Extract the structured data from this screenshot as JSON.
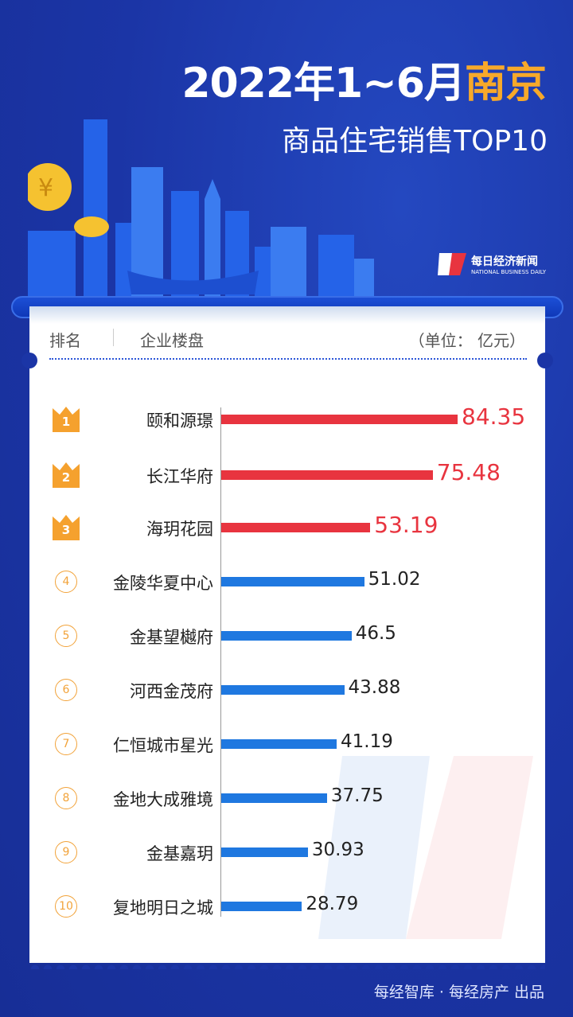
{
  "header": {
    "title_prefix": "2022年1~6月",
    "title_city": "南京",
    "subtitle": "商品住宅销售TOP10"
  },
  "logo": {
    "name_cn": "每日经济新闻",
    "name_en": "NATIONAL BUSINESS DAILY"
  },
  "table_header": {
    "rank": "排名",
    "project": "企业楼盘",
    "unit": "（单位： 亿元）"
  },
  "colors": {
    "top3": "#e8343f",
    "others": "#1f78e0",
    "crown": "#f5a12e",
    "background": "#1b35a6",
    "city": "#f7a92a"
  },
  "chart_data": {
    "type": "bar",
    "orientation": "horizontal",
    "unit": "亿元",
    "categories": [
      "颐和源璟",
      "长江华府",
      "海玥花园",
      "金陵华夏中心",
      "金基望樾府",
      "河西金茂府",
      "仁恒城市星光",
      "金地大成雅境",
      "金基嘉玥",
      "复地明日之城"
    ],
    "ranks": [
      "1",
      "2",
      "3",
      "4",
      "5",
      "6",
      "7",
      "8",
      "9",
      "10"
    ],
    "values": [
      84.35,
      75.48,
      53.19,
      51.02,
      46.5,
      43.88,
      41.19,
      37.75,
      30.93,
      28.79
    ],
    "value_labels": [
      "84.35",
      "75.48",
      "53.19",
      "51.02",
      "46.5",
      "43.88",
      "41.19",
      "37.75",
      "30.93",
      "28.79"
    ]
  },
  "footer": {
    "credit": "每经智库 · 每经房产 出品"
  }
}
